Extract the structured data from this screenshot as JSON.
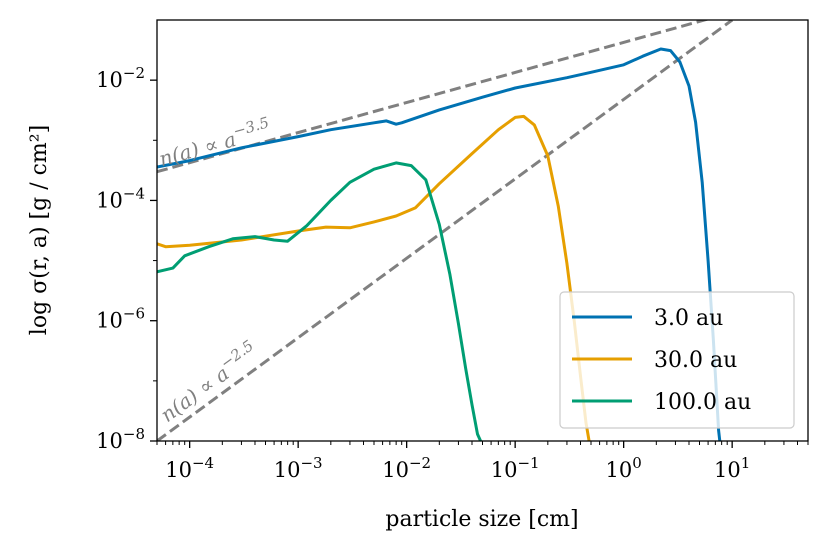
{
  "chart_data": {
    "type": "line",
    "xlabel": "particle size [cm]",
    "ylabel": "log σ(r, a) [g / cm²]",
    "x_scale": "log",
    "y_scale": "log",
    "xlim": [
      5e-05,
      50
    ],
    "ylim": [
      1e-08,
      0.1
    ],
    "grid": false,
    "legend_position": "lower-right",
    "x_ticks": [
      {
        "value": 0.0001,
        "base": "10",
        "exp": "−4"
      },
      {
        "value": 0.001,
        "base": "10",
        "exp": "−3"
      },
      {
        "value": 0.01,
        "base": "10",
        "exp": "−2"
      },
      {
        "value": 0.1,
        "base": "10",
        "exp": "−1"
      },
      {
        "value": 1,
        "base": "10",
        "exp": "0"
      },
      {
        "value": 10,
        "base": "10",
        "exp": "1"
      }
    ],
    "y_ticks": [
      {
        "value": 0.01,
        "base": "10",
        "exp": "−2"
      },
      {
        "value": 0.0001,
        "base": "10",
        "exp": "−4"
      },
      {
        "value": 1e-06,
        "base": "10",
        "exp": "−6"
      },
      {
        "value": 1e-08,
        "base": "10",
        "exp": "−8"
      }
    ],
    "series": [
      {
        "name": "3.0 au",
        "color": "#0072b2",
        "points": [
          [
            5e-05,
            0.00036
          ],
          [
            0.0001,
            0.00046
          ],
          [
            0.0003,
            0.00075
          ],
          [
            0.001,
            0.00115
          ],
          [
            0.002,
            0.0015
          ],
          [
            0.005,
            0.00195
          ],
          [
            0.0065,
            0.0021
          ],
          [
            0.008,
            0.00185
          ],
          [
            0.009,
            0.00195
          ],
          [
            0.02,
            0.0032
          ],
          [
            0.05,
            0.0052
          ],
          [
            0.1,
            0.0074
          ],
          [
            0.3,
            0.011
          ],
          [
            0.5,
            0.0135
          ],
          [
            1,
            0.018
          ],
          [
            1.5,
            0.025
          ],
          [
            2.2,
            0.033
          ],
          [
            2.7,
            0.031
          ],
          [
            3.3,
            0.02
          ],
          [
            4,
            0.008
          ],
          [
            4.6,
            0.002
          ],
          [
            5.3,
            0.0002
          ],
          [
            6,
            1e-05
          ],
          [
            6.7,
            5e-07
          ],
          [
            7.5,
            1.5e-08
          ],
          [
            7.7,
            1e-08
          ]
        ]
      },
      {
        "name": "30.0 au",
        "color": "#e69f00",
        "points": [
          [
            5e-05,
            1.9e-05
          ],
          [
            6e-05,
            1.7e-05
          ],
          [
            0.0001,
            1.8e-05
          ],
          [
            0.0003,
            2.2e-05
          ],
          [
            0.001,
            3.1e-05
          ],
          [
            0.0018,
            3.6e-05
          ],
          [
            0.003,
            3.5e-05
          ],
          [
            0.005,
            4.4e-05
          ],
          [
            0.008,
            5.5e-05
          ],
          [
            0.012,
            7.5e-05
          ],
          [
            0.02,
            0.00019
          ],
          [
            0.04,
            0.0006
          ],
          [
            0.07,
            0.0015
          ],
          [
            0.1,
            0.0024
          ],
          [
            0.12,
            0.0025
          ],
          [
            0.15,
            0.0018
          ],
          [
            0.2,
            0.00055
          ],
          [
            0.25,
            8e-05
          ],
          [
            0.3,
            9e-06
          ],
          [
            0.35,
            1e-06
          ],
          [
            0.4,
            1.2e-07
          ],
          [
            0.45,
            2e-08
          ],
          [
            0.48,
            1e-08
          ]
        ]
      },
      {
        "name": "100.0 au",
        "color": "#009e73",
        "points": [
          [
            5e-05,
            6.5e-06
          ],
          [
            7e-05,
            7.5e-06
          ],
          [
            9e-05,
            1.2e-05
          ],
          [
            0.00015,
            1.7e-05
          ],
          [
            0.00025,
            2.3e-05
          ],
          [
            0.0004,
            2.5e-05
          ],
          [
            0.0006,
            2.2e-05
          ],
          [
            0.0008,
            2.1e-05
          ],
          [
            0.0012,
            3.8e-05
          ],
          [
            0.002,
            0.0001
          ],
          [
            0.003,
            0.0002
          ],
          [
            0.005,
            0.00033
          ],
          [
            0.008,
            0.00042
          ],
          [
            0.011,
            0.00038
          ],
          [
            0.015,
            0.00022
          ],
          [
            0.02,
            4e-05
          ],
          [
            0.025,
            6e-06
          ],
          [
            0.03,
            9e-07
          ],
          [
            0.035,
            1.6e-07
          ],
          [
            0.04,
            4e-08
          ],
          [
            0.045,
            1.3e-08
          ],
          [
            0.048,
            1e-08
          ]
        ]
      }
    ],
    "reference_lines": [
      {
        "label_base": "n(a) ∝ a",
        "label_exp": "−3.5",
        "color": "#808080",
        "points": [
          [
            5e-05,
            0.0003
          ],
          [
            50,
            0.3
          ]
        ]
      },
      {
        "label_base": "n(a) ∝ a",
        "label_exp": "−2.5",
        "color": "#808080",
        "points": [
          [
            5e-05,
            1e-08
          ],
          [
            10,
            0.1
          ]
        ]
      }
    ]
  }
}
